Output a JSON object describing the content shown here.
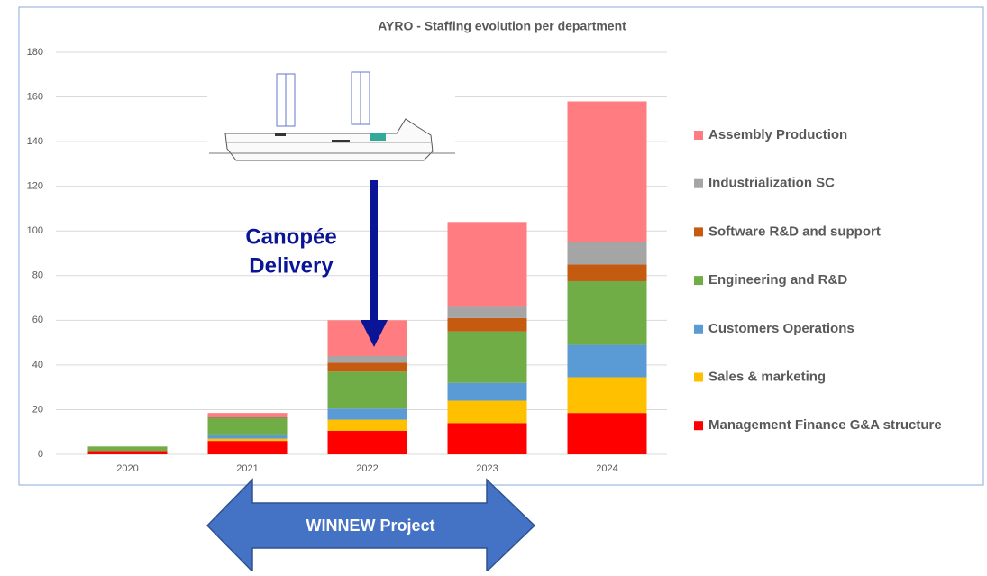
{
  "chart_data": {
    "type": "stacked_bar",
    "title": "AYRO - Staffing evolution per department",
    "categories": [
      "2020",
      "2021",
      "2022",
      "2023",
      "2024"
    ],
    "series": [
      {
        "name": "Management Finance G&A structure",
        "color": "#ff0000",
        "values": [
          1.5,
          6,
          10.5,
          14,
          18.5
        ]
      },
      {
        "name": "Sales & marketing",
        "color": "#ffc000",
        "values": [
          0,
          1,
          5,
          10,
          16
        ]
      },
      {
        "name": "Customers Operations",
        "color": "#5b9bd5",
        "values": [
          0,
          1.5,
          5,
          8,
          14.5
        ]
      },
      {
        "name": "Engineering and R&D",
        "color": "#70ad47",
        "values": [
          2,
          7.5,
          16.5,
          23,
          28.5
        ]
      },
      {
        "name": "Software R&D and support",
        "color": "#c55a11",
        "values": [
          0,
          0.5,
          4,
          6,
          7.5
        ]
      },
      {
        "name": "Industrialization SC",
        "color": "#a5a5a5",
        "values": [
          0,
          0.5,
          3,
          5,
          10
        ]
      },
      {
        "name": "Assembly Production",
        "color": "#ff7c80",
        "values": [
          0,
          1.5,
          16,
          38,
          63
        ]
      }
    ],
    "ylim": [
      0,
      180
    ],
    "yticks": [
      0,
      20,
      40,
      60,
      80,
      100,
      120,
      140,
      160,
      180
    ],
    "grid": true,
    "legend": "right",
    "annotations": [
      "Canopée",
      "Delivery",
      "WINNEW Project"
    ]
  }
}
